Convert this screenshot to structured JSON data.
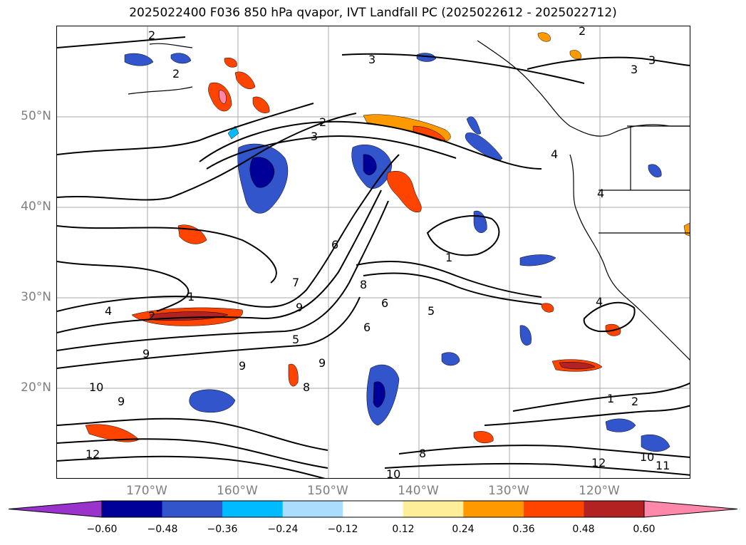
{
  "title": "2025022400 F036 850 hPa qvapor, IVT Landfall PC (2025022612 - 2025022712)",
  "lat_labels": [
    "50°N",
    "40°N",
    "30°N",
    "20°N"
  ],
  "lon_labels": [
    "170°W",
    "160°W",
    "150°W",
    "140°W",
    "130°W",
    "120°W"
  ],
  "colorbar": {
    "ticks": [
      "−0.60",
      "−0.48",
      "−0.36",
      "−0.24",
      "−0.12",
      "0.12",
      "0.24",
      "0.36",
      "0.48",
      "0.60"
    ],
    "colors": [
      "#9933cc",
      "#000099",
      "#3355cc",
      "#00bbff",
      "#aaddff",
      "#ffffff",
      "#ffee99",
      "#ff9900",
      "#ff4400",
      "#b22222",
      "#ff88aa"
    ]
  },
  "contour_labels": [
    "2",
    "3",
    "2",
    "3",
    "2",
    "3",
    "2",
    "3",
    "4",
    "4",
    "6",
    "1",
    "6",
    "7",
    "1",
    "4",
    "2",
    "9",
    "8",
    "6",
    "5",
    "9",
    "5",
    "9",
    "9",
    "8",
    "10",
    "1",
    "2",
    "12",
    "9",
    "8",
    "10",
    "12",
    "11",
    "10",
    "4"
  ]
}
